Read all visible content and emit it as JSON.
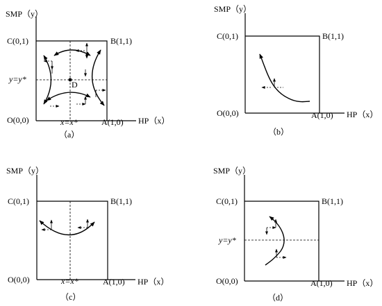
{
  "panels": [
    {
      "id": "a",
      "y_axis": "SMP（y）",
      "x_axis": "HP（x）",
      "corner_C": "C(0,1)",
      "corner_B": "B(1,1)",
      "corner_O": "O(0,0)",
      "corner_A": "A(1,0)",
      "equilibrium_y": "y=y*",
      "equilibrium_x": "x=x*",
      "saddle_point": "D",
      "caption": "（a）"
    },
    {
      "id": "b",
      "y_axis": "SMP（y）",
      "x_axis": "HP（x）",
      "corner_C": "C(0,1)",
      "corner_B": "B(1,1)",
      "corner_O": "O(0,0)",
      "corner_A": "A(1,0)",
      "caption": "（b）"
    },
    {
      "id": "c",
      "y_axis": "SMP（y）",
      "x_axis": "HP（x）",
      "corner_C": "C(0,1)",
      "corner_B": "B(1,1)",
      "corner_O": "O(0,0)",
      "corner_A": "A(1,0)",
      "equilibrium_x": "x=x*",
      "caption": "（c）"
    },
    {
      "id": "d",
      "y_axis": "SMP（y）",
      "x_axis": "HP（x）",
      "corner_C": "C(0,1)",
      "corner_B": "B(1,1)",
      "corner_O": "O(0,0)",
      "corner_A": "A(1,0)",
      "equilibrium_y": "y=y*",
      "caption": "（d）"
    }
  ]
}
